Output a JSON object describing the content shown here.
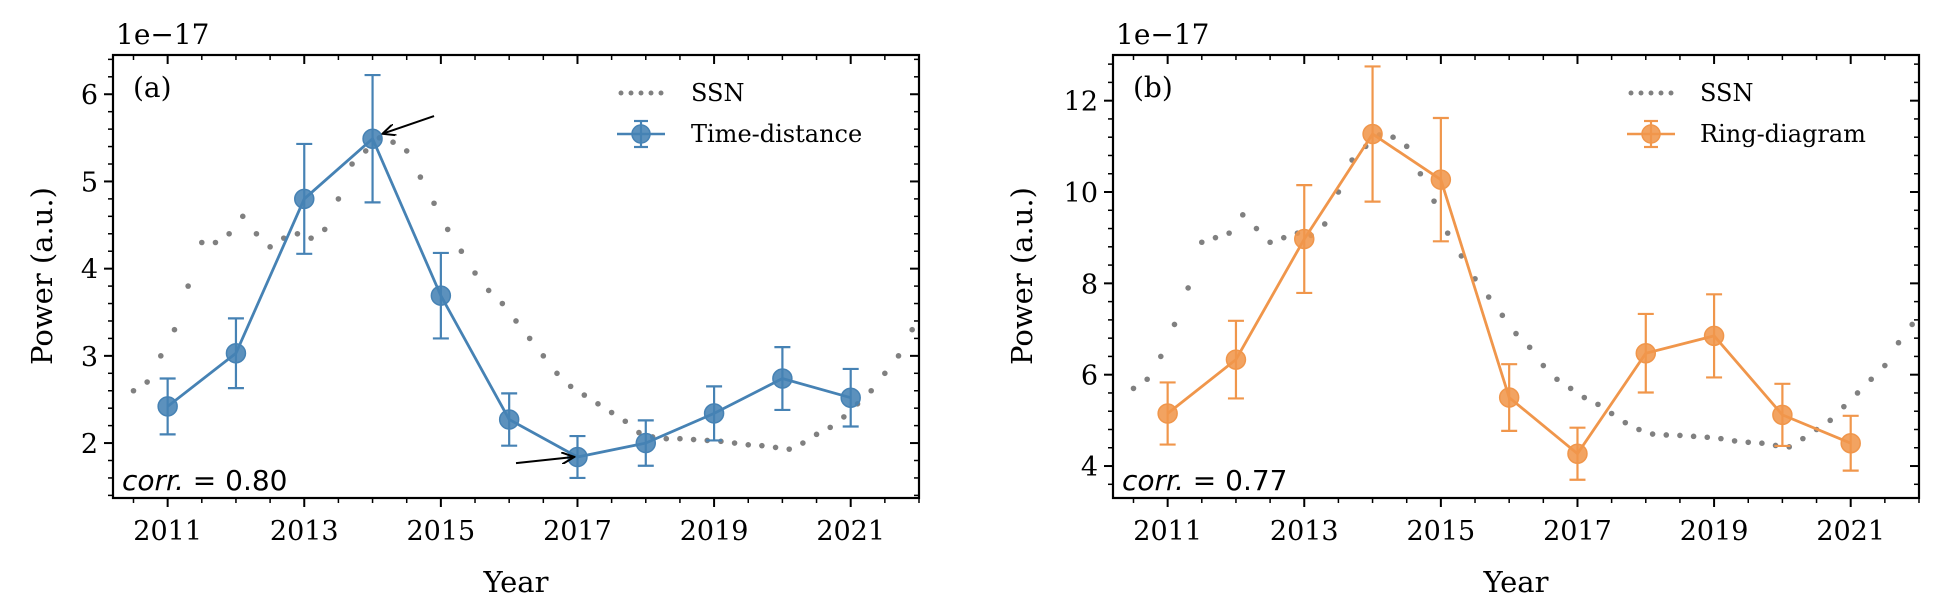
{
  "chart_data": [
    {
      "type": "line",
      "panel_label": "(a)",
      "xlabel": "Year",
      "ylabel": "Power (a.u.)",
      "offset_label": "1e−17",
      "corr_prefix": "corr.",
      "corr_suffix": " = 0.80",
      "xlim": [
        2010.2,
        2022.0
      ],
      "ylim": [
        1.37,
        6.45
      ],
      "xticks": [
        2011,
        2013,
        2015,
        2017,
        2019,
        2021
      ],
      "yticks": [
        2,
        3,
        4,
        5,
        6
      ],
      "color": "#4682B4",
      "legend": {
        "ssn_label": "SSN",
        "series_label": "Time-distance",
        "position": "upper-right"
      },
      "series": {
        "name": "Time-distance",
        "x": [
          2011,
          2012,
          2013,
          2014,
          2015,
          2016,
          2017,
          2018,
          2019,
          2020,
          2021
        ],
        "y": [
          2.42,
          3.03,
          4.8,
          5.49,
          3.69,
          2.27,
          1.84,
          2.0,
          2.34,
          2.74,
          2.52
        ],
        "err": [
          0.32,
          0.4,
          0.63,
          0.73,
          0.49,
          0.3,
          0.24,
          0.26,
          0.31,
          0.36,
          0.33
        ]
      },
      "ssn": {
        "x": [
          2010.5,
          2010.7,
          2010.9,
          2011.1,
          2011.3,
          2011.5,
          2011.7,
          2011.9,
          2012.1,
          2012.3,
          2012.5,
          2012.7,
          2012.9,
          2013.1,
          2013.3,
          2013.5,
          2013.7,
          2013.9,
          2014.1,
          2014.3,
          2014.5,
          2014.7,
          2014.9,
          2015.1,
          2015.3,
          2015.5,
          2015.7,
          2015.9,
          2016.1,
          2016.3,
          2016.5,
          2016.7,
          2016.9,
          2017.1,
          2017.3,
          2017.5,
          2017.7,
          2017.9,
          2018.1,
          2018.3,
          2018.5,
          2018.7,
          2018.9,
          2019.1,
          2019.3,
          2019.5,
          2019.7,
          2019.9,
          2020.1,
          2020.3,
          2020.5,
          2020.7,
          2020.9,
          2021.1,
          2021.3,
          2021.5,
          2021.7,
          2021.9
        ],
        "y": [
          2.6,
          2.7,
          3.0,
          3.3,
          3.8,
          4.3,
          4.3,
          4.4,
          4.6,
          4.4,
          4.25,
          4.35,
          4.4,
          4.35,
          4.45,
          4.8,
          5.2,
          5.35,
          5.5,
          5.45,
          5.35,
          5.05,
          4.75,
          4.45,
          4.2,
          3.95,
          3.75,
          3.6,
          3.4,
          3.2,
          3.0,
          2.8,
          2.65,
          2.55,
          2.45,
          2.35,
          2.25,
          2.12,
          2.07,
          2.05,
          2.05,
          2.04,
          2.03,
          2.02,
          2.0,
          1.98,
          1.97,
          1.95,
          1.93,
          2.0,
          2.1,
          2.18,
          2.3,
          2.45,
          2.6,
          2.8,
          3.0,
          3.3
        ]
      },
      "annotations": [
        {
          "type": "arrow",
          "from_x": 2014.9,
          "from_y": 5.75,
          "to_x": 2014.1,
          "to_y": 5.55
        },
        {
          "type": "arrow",
          "from_x": 2016.1,
          "from_y": 1.77,
          "to_x": 2017.0,
          "to_y": 1.84
        }
      ]
    },
    {
      "type": "line",
      "panel_label": "(b)",
      "xlabel": "Year",
      "ylabel": "Power (a.u.)",
      "offset_label": "1e−17",
      "corr_prefix": "corr.",
      "corr_suffix": " = 0.77",
      "xlim": [
        2010.2,
        2022.0
      ],
      "ylim": [
        3.3,
        13.0
      ],
      "xticks": [
        2011,
        2013,
        2015,
        2017,
        2019,
        2021
      ],
      "yticks": [
        4,
        6,
        8,
        10,
        12
      ],
      "color": "#F0964B",
      "legend": {
        "ssn_label": "SSN",
        "series_label": "Ring-diagram",
        "position": "upper-right"
      },
      "series": {
        "name": "Ring-diagram",
        "x": [
          2011,
          2012,
          2013,
          2014,
          2015,
          2016,
          2017,
          2018,
          2019,
          2020,
          2021
        ],
        "y": [
          5.15,
          6.33,
          8.97,
          11.27,
          10.27,
          5.5,
          4.27,
          6.47,
          6.85,
          5.12,
          4.5
        ],
        "err": [
          0.68,
          0.85,
          1.18,
          1.48,
          1.35,
          0.73,
          0.57,
          0.86,
          0.91,
          0.68,
          0.6
        ]
      },
      "ssn": {
        "x": [
          2010.5,
          2010.7,
          2010.9,
          2011.1,
          2011.3,
          2011.5,
          2011.7,
          2011.9,
          2012.1,
          2012.3,
          2012.5,
          2012.7,
          2012.9,
          2013.1,
          2013.3,
          2013.5,
          2013.7,
          2013.9,
          2014.1,
          2014.3,
          2014.5,
          2014.7,
          2014.9,
          2015.1,
          2015.3,
          2015.5,
          2015.7,
          2015.9,
          2016.1,
          2016.3,
          2016.5,
          2016.7,
          2016.9,
          2017.1,
          2017.3,
          2017.5,
          2017.7,
          2017.9,
          2018.1,
          2018.3,
          2018.5,
          2018.7,
          2018.9,
          2019.1,
          2019.3,
          2019.5,
          2019.7,
          2019.9,
          2020.1,
          2020.3,
          2020.5,
          2020.7,
          2020.9,
          2021.1,
          2021.3,
          2021.5,
          2021.7,
          2021.9
        ],
        "y": [
          5.7,
          5.9,
          6.4,
          7.1,
          7.9,
          8.9,
          9.0,
          9.1,
          9.5,
          9.2,
          8.9,
          9.0,
          9.1,
          9.05,
          9.3,
          10.0,
          10.7,
          11.0,
          11.25,
          11.2,
          11.0,
          10.4,
          9.8,
          9.1,
          8.6,
          8.1,
          7.7,
          7.3,
          6.9,
          6.6,
          6.2,
          5.9,
          5.7,
          5.5,
          5.35,
          5.15,
          4.95,
          4.8,
          4.7,
          4.68,
          4.67,
          4.65,
          4.63,
          4.6,
          4.55,
          4.52,
          4.5,
          4.45,
          4.42,
          4.6,
          4.8,
          5.0,
          5.3,
          5.6,
          5.9,
          6.2,
          6.7,
          7.1
        ]
      },
      "annotations": []
    }
  ]
}
